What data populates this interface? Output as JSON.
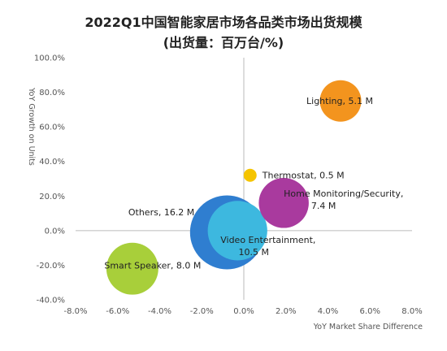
{
  "chart_data": {
    "type": "bubble",
    "title": "2022Q1中国智能家居市场各品类市场出货规模",
    "subtitle": "(出货量：百万台/%)",
    "xlabel": "YoY Market Share Difference",
    "ylabel": "YoY Growth on Units",
    "xlim": [
      -8,
      8
    ],
    "ylim": [
      -40,
      100
    ],
    "x_ticks": [
      -8,
      -6,
      -4,
      -2,
      0,
      2,
      4,
      6,
      8
    ],
    "y_ticks": [
      -40,
      -20,
      0,
      20,
      40,
      60,
      80,
      100
    ],
    "x_tick_labels": [
      "-8.0%",
      "-6.0%",
      "-4.0%",
      "-2.0%",
      "0.0%",
      "2.0%",
      "4.0%",
      "6.0%",
      "8.0%"
    ],
    "y_tick_labels": [
      "-40.0%",
      "-20.0%",
      "0.0%",
      "20.0%",
      "40.0%",
      "60.0%",
      "80.0%",
      "100.0%"
    ],
    "points": [
      {
        "key": "others",
        "x": -0.8,
        "y": -1,
        "size": 16.2,
        "color": "#2f7ed0",
        "label": [
          "Others, 16.2 M"
        ]
      },
      {
        "key": "video",
        "x": -0.3,
        "y": 0,
        "size": 10.5,
        "color": "#3db8df",
        "label": [
          "Video Entertainment,",
          "10.5 M"
        ]
      },
      {
        "key": "smart-speaker",
        "x": -5.3,
        "y": -22,
        "size": 8.0,
        "color": "#a8cf3a",
        "label": [
          "Smart Speaker, 8.0 M"
        ]
      },
      {
        "key": "home-monitoring",
        "x": 1.9,
        "y": 16,
        "size": 7.4,
        "color": "#a93a9e",
        "label": [
          "Home Monitoring/Security,",
          "7.4 M"
        ]
      },
      {
        "key": "lighting",
        "x": 4.6,
        "y": 75,
        "size": 5.1,
        "color": "#f3941e",
        "label": [
          "Lighting, 5.1 M"
        ]
      },
      {
        "key": "thermostat",
        "x": 0.3,
        "y": 32,
        "size": 0.5,
        "color": "#f5c400",
        "label": [
          "Thermostat, 0.5 M"
        ]
      }
    ]
  }
}
